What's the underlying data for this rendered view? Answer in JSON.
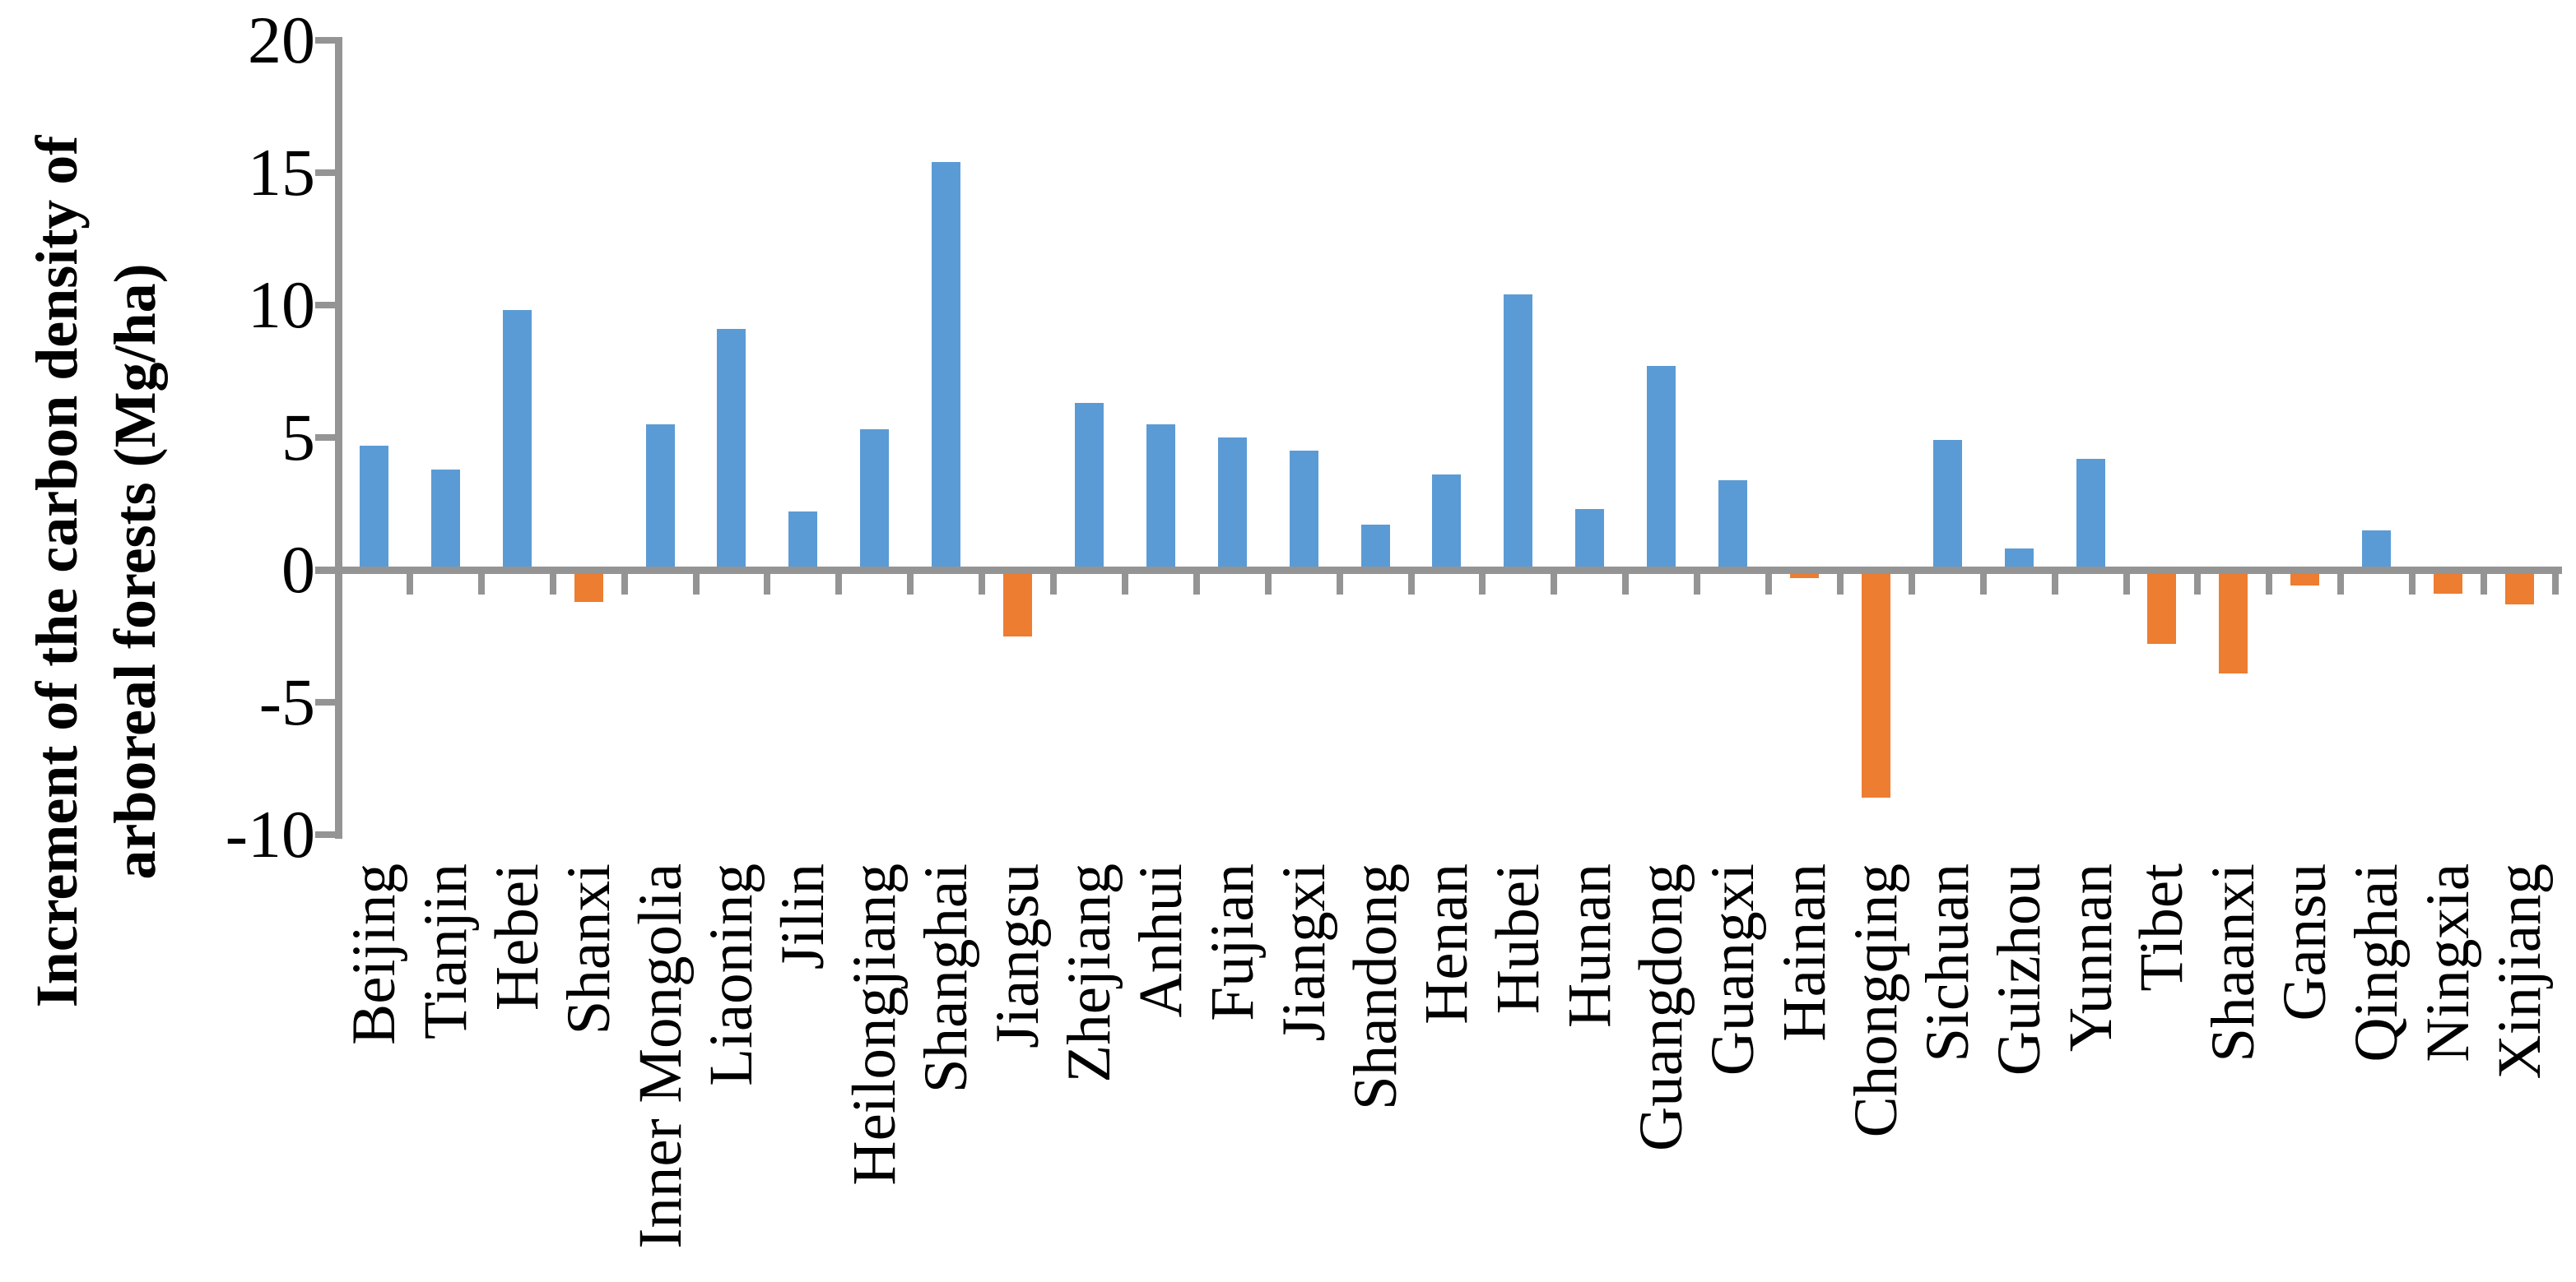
{
  "chart_data": {
    "type": "bar",
    "title": "",
    "ylabel_line1": "Increment of  the carbon density of",
    "ylabel_line2": "arboreal forests (Mg/ha)",
    "xlabel": "",
    "categories": [
      "Beijing",
      "Tianjin",
      "Hebei",
      "Shanxi",
      "Inner Mongolia",
      "Liaoning",
      "Jilin",
      "Heilongjiang",
      "Shanghai",
      "Jiangsu",
      "Zhejiang",
      "Anhui",
      "Fujian",
      "Jiangxi",
      "Shandong",
      "Henan",
      "Hubei",
      "Hunan",
      "Guangdong",
      "Guangxi",
      "Hainan",
      "Chongqing",
      "Sichuan",
      "Guizhou",
      "Yunnan",
      "Tibet",
      "Shaanxi",
      "Gansu",
      "Qinghai",
      "Ningxia",
      "Xinjiang"
    ],
    "values": [
      4.7,
      3.8,
      9.8,
      -1.2,
      5.5,
      9.1,
      2.2,
      5.3,
      15.4,
      -2.5,
      6.3,
      5.5,
      5.0,
      4.5,
      1.7,
      3.6,
      10.4,
      2.3,
      7.7,
      3.4,
      -0.3,
      -8.6,
      4.9,
      0.8,
      4.2,
      -2.8,
      -3.9,
      -0.6,
      1.5,
      -0.9,
      -1.3
    ],
    "y_ticks": [
      20,
      15,
      10,
      5,
      0,
      -5,
      -10
    ],
    "y_tick_labels": [
      "20",
      "15",
      "10",
      "5",
      "0",
      "-5",
      "-10"
    ],
    "ylim": [
      -10,
      20
    ],
    "grid": "off",
    "legend": "none",
    "positive_color": "#5B9BD5",
    "negative_color": "#ED7D31",
    "axis_color": "#949494",
    "text_color": "#000000"
  }
}
